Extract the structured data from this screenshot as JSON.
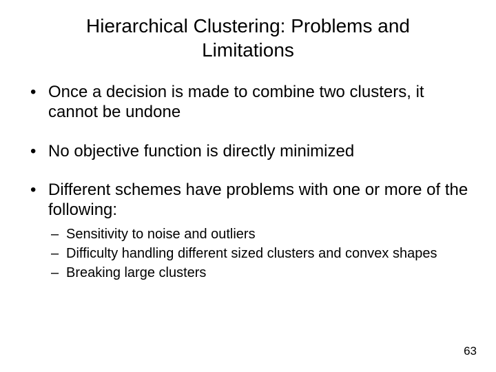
{
  "title": "Hierarchical Clustering:  Problems and Limitations",
  "bullets": [
    {
      "text": "Once a decision is made to combine two clusters, it cannot be undone"
    },
    {
      "text": "No objective function is directly minimized"
    },
    {
      "text": "Different schemes have problems with one or more of the following:",
      "sub": [
        "Sensitivity to noise and outliers",
        "Difficulty handling different sized clusters and convex shapes",
        "Breaking large clusters"
      ]
    }
  ],
  "page_number": "63",
  "colors": {
    "background": "#ffffff",
    "text": "#000000"
  },
  "typography": {
    "title_fontsize": 28,
    "bullet_fontsize": 24,
    "sub_bullet_fontsize": 20,
    "page_number_fontsize": 17,
    "font_family": "Arial"
  }
}
